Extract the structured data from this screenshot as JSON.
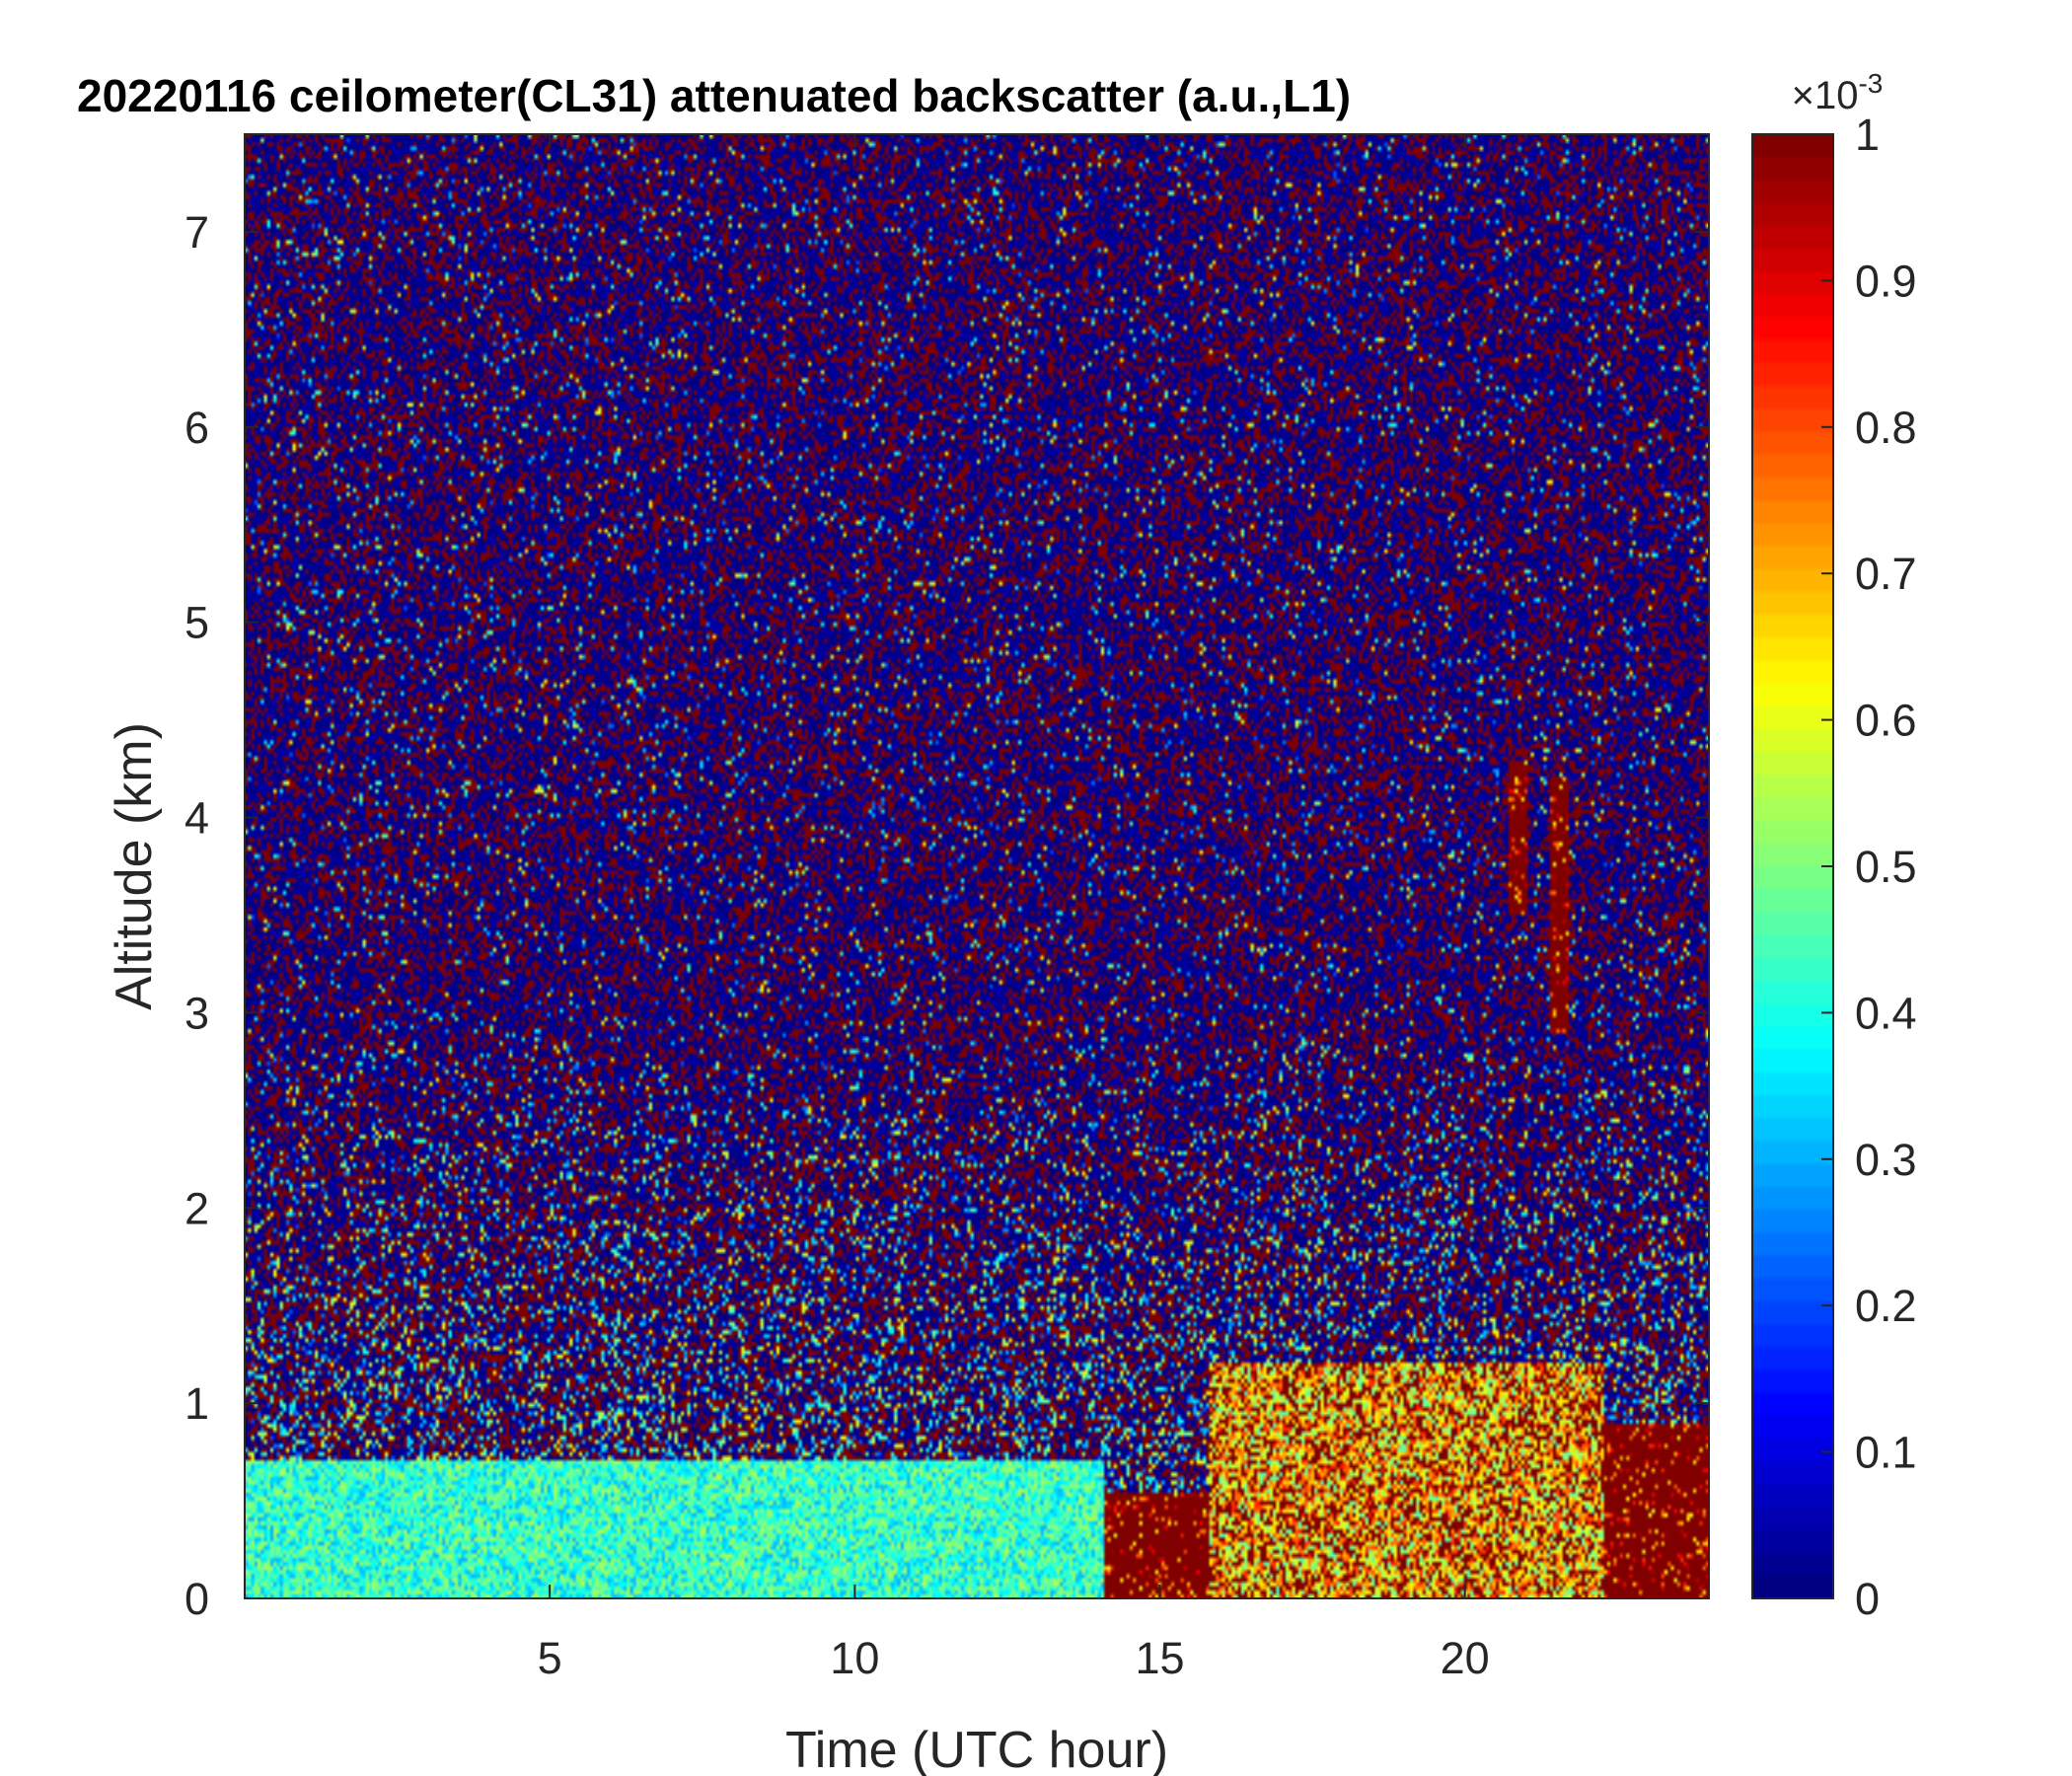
{
  "chart_data": {
    "type": "heatmap",
    "title": "20220116 ceilometer(CL31) attenuated backscatter (a.u.,L1)",
    "xlabel": "Time (UTC hour)",
    "ylabel": "Altitude (km)",
    "xlim": [
      0,
      24
    ],
    "ylim": [
      0,
      7.5
    ],
    "x_ticks": [
      5,
      10,
      15,
      20
    ],
    "x_tick_labels": [
      "5",
      "10",
      "15",
      "20"
    ],
    "y_ticks": [
      0,
      1,
      2,
      3,
      4,
      5,
      6,
      7
    ],
    "y_tick_labels": [
      "0",
      "1",
      "2",
      "3",
      "4",
      "5",
      "6",
      "7"
    ],
    "colorbar": {
      "colormap": "jet",
      "range": [
        0,
        0.001
      ],
      "ticks": [
        0,
        0.1,
        0.2,
        0.3,
        0.4,
        0.5,
        0.6,
        0.7,
        0.8,
        0.9,
        1
      ],
      "tick_labels": [
        "0",
        "0.1",
        "0.2",
        "0.3",
        "0.4",
        "0.5",
        "0.6",
        "0.7",
        "0.8",
        "0.9",
        "1"
      ],
      "exponent_base": "×10",
      "exponent_power": "-3"
    },
    "features": [
      {
        "time_range": [
          0,
          14.1
        ],
        "altitude_range": [
          0,
          0.7
        ],
        "level": 0.4
      },
      {
        "time_range": [
          14.1,
          15.8
        ],
        "altitude_range": [
          0,
          0.55
        ],
        "level": 1.0
      },
      {
        "time_range": [
          15.8,
          22.3
        ],
        "altitude_range": [
          0,
          1.2
        ],
        "level": 0.75
      },
      {
        "time_range": [
          22.3,
          24
        ],
        "altitude_range": [
          0,
          0.9
        ],
        "level": 1.0
      },
      {
        "time_range": [
          20.7,
          21.0
        ],
        "altitude_range": [
          3.5,
          4.3
        ],
        "level": 1.0
      },
      {
        "time_range": [
          21.4,
          21.7
        ],
        "altitude_range": [
          2.9,
          4.2
        ],
        "level": 1.0
      }
    ]
  }
}
